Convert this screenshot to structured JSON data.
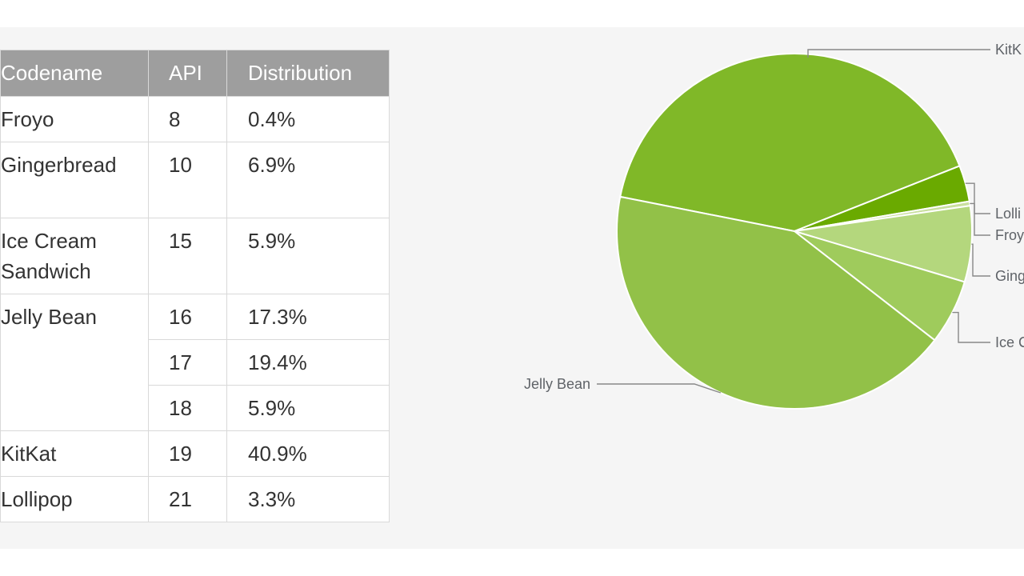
{
  "table": {
    "headers": {
      "codename": "Codename",
      "api": "API",
      "distribution": "Distribution"
    },
    "rows": [
      {
        "codename": "Froyo",
        "api": "8",
        "distribution": "0.4%"
      },
      {
        "codename": "Gingerbread",
        "api": "10",
        "distribution": "6.9%"
      },
      {
        "codename": "Ice Cream Sandwich",
        "api": "15",
        "distribution": "5.9%"
      },
      {
        "codename": "Jelly Bean",
        "api": "16",
        "distribution": "17.3%"
      },
      {
        "codename": "",
        "api": "17",
        "distribution": "19.4%"
      },
      {
        "codename": "",
        "api": "18",
        "distribution": "5.9%"
      },
      {
        "codename": "KitKat",
        "api": "19",
        "distribution": "40.9%"
      },
      {
        "codename": "Lollipop",
        "api": "21",
        "distribution": "3.3%"
      }
    ]
  },
  "chart_data": {
    "type": "pie",
    "title": "",
    "labels": [
      "KitKat",
      "Lollipop",
      "Froyo",
      "Gingerbread",
      "Ice Cream Sandwich",
      "Jelly Bean"
    ],
    "values": [
      40.9,
      3.3,
      0.4,
      6.9,
      5.9,
      42.6
    ],
    "colors": [
      "#80b828",
      "#6aaa00",
      "#c9df9e",
      "#b4d77d",
      "#9fcb5c",
      "#92c148"
    ],
    "visible_labels": [
      "KitK",
      "Lolli",
      "Froy",
      "Ging",
      "Ice C",
      "Jelly Bean"
    ],
    "legend": "leader-line labels"
  }
}
